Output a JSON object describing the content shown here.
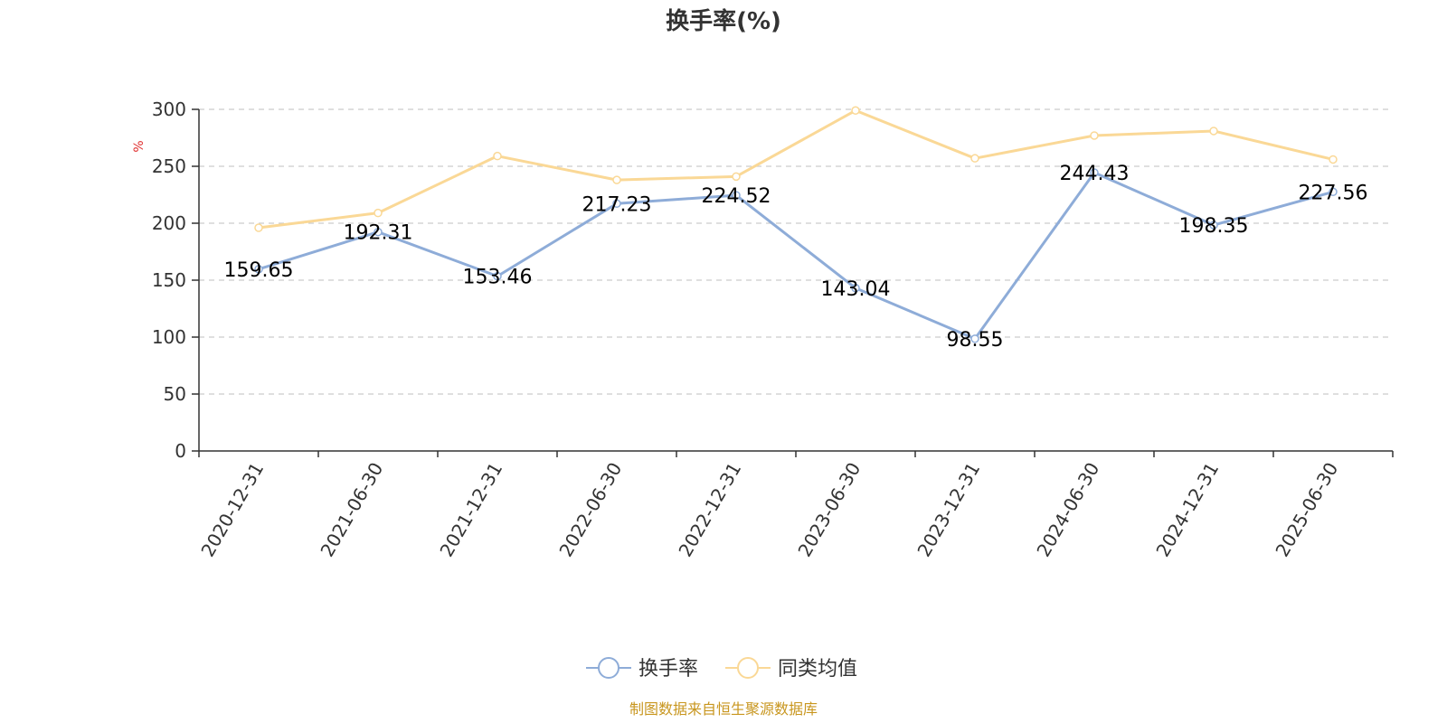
{
  "chart_data": {
    "type": "line",
    "title": "换手率(%)",
    "ylabel": "%",
    "xlabel": "",
    "categories": [
      "2020-12-31",
      "2021-06-30",
      "2021-12-31",
      "2022-06-30",
      "2022-12-31",
      "2023-06-30",
      "2023-12-31",
      "2024-06-30",
      "2024-12-31",
      "2025-06-30"
    ],
    "series": [
      {
        "name": "换手率",
        "color": "#8eacd8",
        "values": [
          159.65,
          192.31,
          153.46,
          217.23,
          224.52,
          143.04,
          98.55,
          244.43,
          198.35,
          227.56
        ],
        "data_labels": [
          "159.65",
          "192.31",
          "153.46",
          "217.23",
          "224.52",
          "143.04",
          "98.55",
          "244.43",
          "198.35",
          "227.56"
        ]
      },
      {
        "name": "同类均值",
        "color": "#fad896",
        "values": [
          196,
          209,
          259,
          238,
          241,
          299,
          257,
          277,
          281,
          256
        ]
      }
    ],
    "ylim": [
      0,
      300
    ],
    "yticks": [
      0,
      50,
      100,
      150,
      200,
      250,
      300
    ],
    "ytick_labels": [
      "0",
      "50",
      "100",
      "150",
      "200",
      "250",
      "300"
    ],
    "grid": true,
    "legend_position": "bottom-center"
  },
  "source_text": "制图数据来自恒生聚源数据库",
  "colors": {
    "axis": "#333333",
    "grid": "#cccccc",
    "unit_label": "#e03030",
    "source": "#c8961e"
  }
}
